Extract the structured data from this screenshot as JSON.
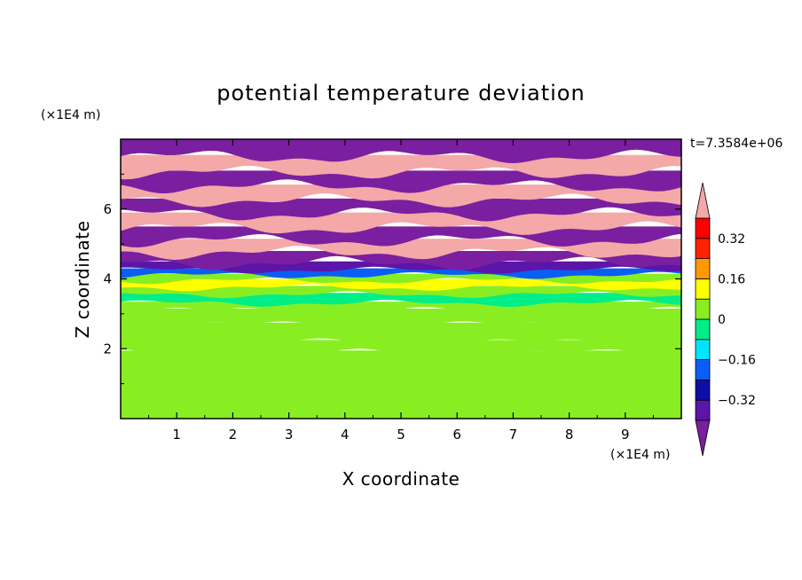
{
  "chart_data": {
    "type": "heatmap",
    "title": "potential temperature deviation",
    "xlabel": "X coordinate",
    "ylabel": "Z coordinate",
    "x_unit": "(×1E4 m)",
    "y_unit": "(×1E4 m)",
    "time_label": "t=7.3584e+06",
    "xlim": [
      0,
      10
    ],
    "ylim": [
      0,
      8
    ],
    "x_ticks": [
      "1",
      "2",
      "3",
      "4",
      "5",
      "6",
      "7",
      "8",
      "9"
    ],
    "y_ticks": [
      "2",
      "4",
      "6"
    ],
    "colorbar": {
      "tick_labels": [
        "0.32",
        "0.16",
        "0",
        "−0.16",
        "−0.32"
      ],
      "tick_values": [
        0.32,
        0.16,
        0,
        -0.16,
        -0.32
      ],
      "levels": [
        -0.4,
        -0.32,
        -0.24,
        -0.16,
        -0.08,
        0,
        0.08,
        0.16,
        0.24,
        0.32,
        0.4
      ],
      "colors": [
        "#7a1fa0",
        "#5b15a8",
        "#0e0ea6",
        "#0a5ef5",
        "#00e5ff",
        "#00ee88",
        "#88ee22",
        "#ffff00",
        "#ff9900",
        "#ff2200",
        "#ff0000",
        "#f4a8a8"
      ],
      "extend": "both"
    },
    "layers": [
      {
        "z": [
          7.5,
          8.0
        ],
        "value": -0.45
      },
      {
        "z": [
          7.05,
          7.5
        ],
        "value": 0.45
      },
      {
        "z": [
          6.65,
          7.05
        ],
        "value": -0.45
      },
      {
        "z": [
          6.25,
          6.65
        ],
        "value": 0.45
      },
      {
        "z": [
          5.85,
          6.25
        ],
        "value": -0.45
      },
      {
        "z": [
          5.45,
          5.85
        ],
        "value": 0.45
      },
      {
        "z": [
          5.1,
          5.45
        ],
        "value": -0.45
      },
      {
        "z": [
          4.75,
          5.1
        ],
        "value": 0.45
      },
      {
        "z": [
          4.45,
          4.75
        ],
        "value": -0.45
      },
      {
        "z": [
          4.25,
          4.45
        ],
        "value": -0.36
      },
      {
        "z": [
          4.1,
          4.25
        ],
        "value": -0.2
      },
      {
        "z": [
          3.95,
          4.1
        ],
        "value": 0.04
      },
      {
        "z": [
          3.75,
          3.95
        ],
        "value": 0.1
      },
      {
        "z": [
          3.55,
          3.75
        ],
        "value": 0.04
      },
      {
        "z": [
          3.3,
          3.55
        ],
        "value": -0.05
      },
      {
        "z": [
          3.1,
          3.3
        ],
        "value": 0.04
      },
      {
        "z": [
          2.7,
          3.1
        ],
        "value": 0.02
      },
      {
        "z": [
          2.2,
          2.7
        ],
        "value": 0.04
      },
      {
        "z": [
          1.9,
          2.2
        ],
        "value": 0.03
      },
      {
        "z": [
          0.0,
          1.9
        ],
        "value": 0.05
      }
    ]
  }
}
